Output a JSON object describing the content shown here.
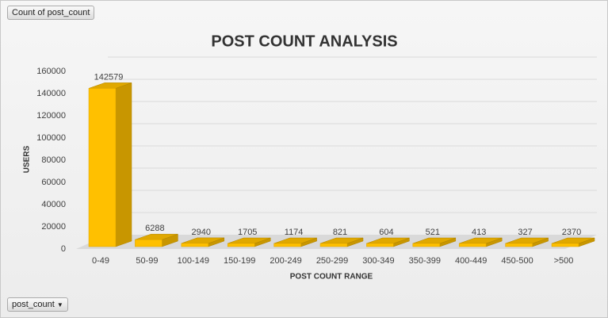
{
  "chart_data": {
    "type": "bar3d",
    "title": "POST COUNT ANALYSIS",
    "x_label": "POST COUNT RANGE",
    "y_label": "USERS",
    "categories": [
      "0-49",
      "50-99",
      "100-149",
      "150-199",
      "200-249",
      "250-299",
      "300-349",
      "350-399",
      "400-449",
      "450-500",
      ">500"
    ],
    "values": [
      142579,
      6288,
      2940,
      1705,
      1174,
      821,
      604,
      521,
      413,
      327,
      2370
    ],
    "color": "#ffc000",
    "ylim": [
      0,
      160000
    ],
    "yticks": [
      0,
      20000,
      40000,
      60000,
      80000,
      100000,
      120000,
      140000,
      160000
    ],
    "grid": true
  },
  "pivot_buttons": {
    "value_field": "Count of post_count",
    "axis_field": "post_count"
  }
}
